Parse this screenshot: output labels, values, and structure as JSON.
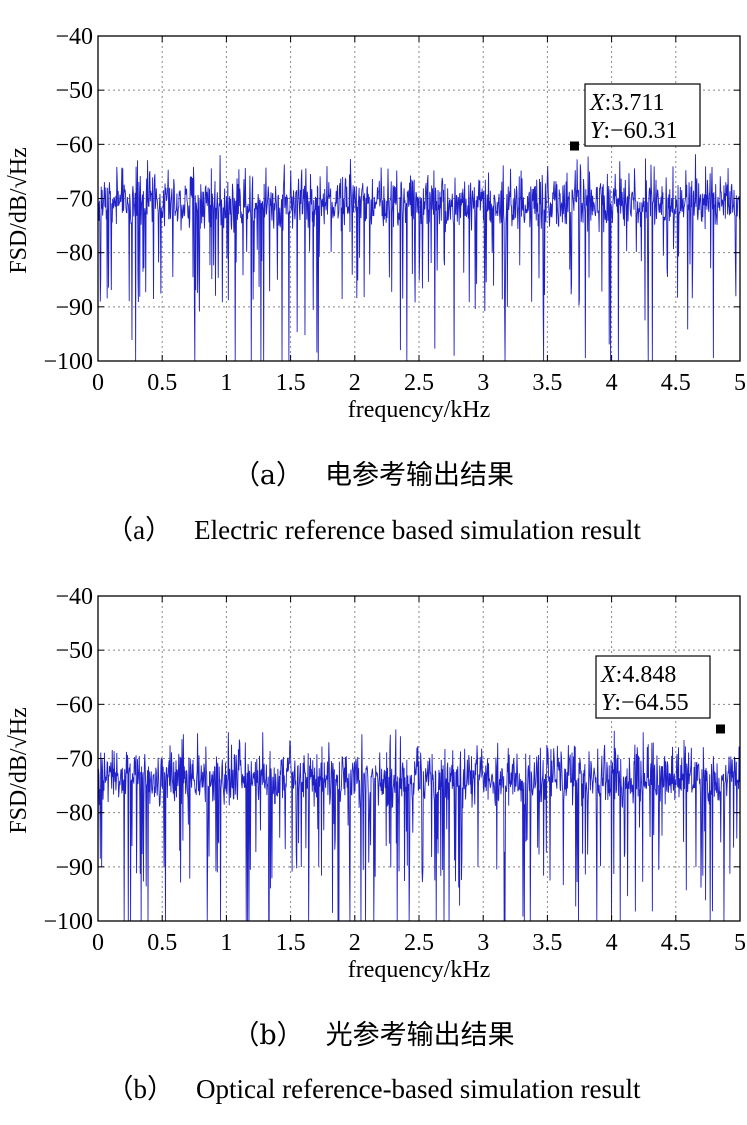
{
  "panels": [
    {
      "id": "a",
      "caption_cn_label": "（a）",
      "caption_cn": "电参考输出结果",
      "caption_en_label": "（a）",
      "caption_en": "Electric reference based simulation result",
      "datatip": {
        "x_label": "X",
        "x_value": "3.711",
        "y_label": "Y",
        "y_value": "-60.31"
      }
    },
    {
      "id": "b",
      "caption_cn_label": "（b）",
      "caption_cn": "光参考输出结果",
      "caption_en_label": "（b）",
      "caption_en": "Optical reference-based simulation result",
      "datatip": {
        "x_label": "X",
        "x_value": "4.848",
        "y_label": "Y",
        "y_value": "-64.55"
      }
    }
  ],
  "chart_data": [
    {
      "type": "line",
      "xlabel": "frequency/kHz",
      "ylabel": "FSD/dB/√Hz",
      "xlim": [
        0,
        5
      ],
      "ylim": [
        -100,
        -40
      ],
      "x_ticks": [
        "0",
        "0.5",
        "1",
        "1.5",
        "2",
        "2.5",
        "3",
        "3.5",
        "4",
        "4.5",
        "5"
      ],
      "y_ticks": [
        "−40",
        "−50",
        "−60",
        "−70",
        "−80",
        "−90",
        "−100"
      ],
      "grid": true,
      "line_color": "#2020c8",
      "series": [
        {
          "values_summary": "dense noise spectrum, median about -71 dB, upper envelope about -63 to -68 dB, downward spikes to about -100 dB",
          "median": -71,
          "upper_envelope": -64,
          "lower_spike_min": -100,
          "marker": {
            "x": 3.711,
            "y": -60.31
          }
        }
      ]
    },
    {
      "type": "line",
      "xlabel": "frequency/kHz",
      "ylabel": "FSD/dB/√Hz",
      "xlim": [
        0,
        5
      ],
      "ylim": [
        -100,
        -40
      ],
      "x_ticks": [
        "0",
        "0.5",
        "1",
        "1.5",
        "2",
        "2.5",
        "3",
        "3.5",
        "4",
        "4.5",
        "5"
      ],
      "y_ticks": [
        "−40",
        "−50",
        "−60",
        "−70",
        "−80",
        "−90",
        "−100"
      ],
      "grid": true,
      "line_color": "#2020c8",
      "series": [
        {
          "values_summary": "dense noise spectrum, median about -74 dB, upper envelope about -66 to -69 dB, downward spikes to about -100 dB",
          "median": -74,
          "upper_envelope": -67,
          "lower_spike_min": -100,
          "marker": {
            "x": 4.848,
            "y": -64.55
          }
        }
      ]
    }
  ]
}
